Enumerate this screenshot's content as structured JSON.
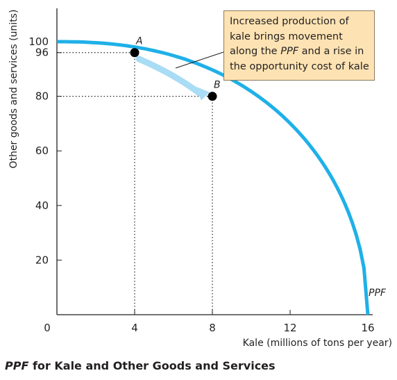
{
  "chart_data": {
    "type": "line",
    "series": [
      {
        "name": "PPF",
        "x": [
          0,
          2,
          4,
          6,
          8,
          10,
          12,
          14,
          15,
          16
        ],
        "y": [
          100,
          99,
          96,
          90.8,
          80,
          68,
          52,
          30,
          16,
          0
        ]
      }
    ],
    "points": [
      {
        "label": "A",
        "x": 4,
        "y": 96
      },
      {
        "label": "B",
        "x": 8,
        "y": 80
      }
    ],
    "xlabel": "Kale (millions of tons per year)",
    "ylabel": "Other goods and services (units)",
    "xticks": [
      0,
      4,
      8,
      12,
      16
    ],
    "yticks": [
      20,
      40,
      60,
      80,
      96,
      100
    ],
    "xlim": [
      0,
      16.2
    ],
    "ylim": [
      0,
      112
    ],
    "grid": false,
    "annotation": {
      "lines": [
        "Increased production of",
        "kale brings movement",
        "along the PPF and a rise in",
        "the opportunity cost of kale"
      ]
    },
    "colors": {
      "curve": "#1fb0e8",
      "arrow": "#a9dcf5",
      "callout_bg": "#fde3b3"
    }
  },
  "caption": {
    "italic": "PPF",
    "rest": " for Kale and Other Goods and Services"
  }
}
